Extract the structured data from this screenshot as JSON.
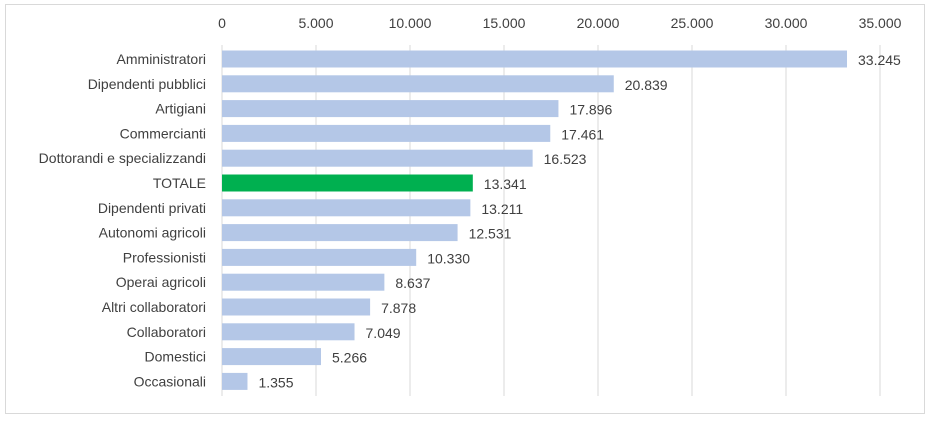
{
  "chart_data": {
    "type": "bar",
    "orientation": "horizontal",
    "title": "",
    "xlabel": "",
    "ylabel": "",
    "xlim": [
      0,
      35000
    ],
    "ticks": [
      "0",
      "5.000",
      "10.000",
      "15.000",
      "20.000",
      "25.000",
      "30.000",
      "35.000"
    ],
    "tick_values": [
      0,
      5000,
      10000,
      15000,
      20000,
      25000,
      30000,
      35000
    ],
    "grid": true,
    "axis_position": "top",
    "categories": [
      "Amministratori",
      "Dipendenti pubblici",
      "Artigiani",
      "Commercianti",
      "Dottorandi e specializzandi",
      "TOTALE",
      "Dipendenti privati",
      "Autonomi agricoli",
      "Professionisti",
      "Operai agricoli",
      "Altri collaboratori",
      "Collaboratori",
      "Domestici",
      "Occasionali"
    ],
    "values": [
      33245,
      20839,
      17896,
      17461,
      16523,
      13341,
      13211,
      12531,
      10330,
      8637,
      7878,
      7049,
      5266,
      1355
    ],
    "value_labels": [
      "33.245",
      "20.839",
      "17.896",
      "17.461",
      "16.523",
      "13.341",
      "13.211",
      "12.531",
      "10.330",
      "8.637",
      "7.878",
      "7.049",
      "5.266",
      "1.355"
    ],
    "highlight_category": "TOTALE",
    "colors": {
      "bar": "#b4c7e7",
      "highlight": "#00b050",
      "grid": "#d9d9d9",
      "text": "#404040"
    }
  }
}
